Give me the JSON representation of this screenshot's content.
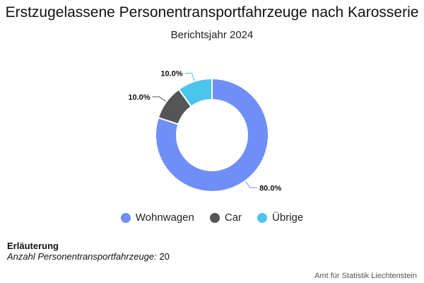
{
  "chart_data": {
    "type": "pie",
    "variant": "donut",
    "title": "Erstzugelassene Personentransportfahrzeuge nach Karosserie",
    "subtitle": "Berichtsjahr 2024",
    "slices": [
      {
        "name": "Wohnwagen",
        "value": 80.0,
        "label": "80.0%",
        "color": "#6f8ff6"
      },
      {
        "name": "Car",
        "value": 10.0,
        "label": "10.0%",
        "color": "#555555"
      },
      {
        "name": "Übrige",
        "value": 10.0,
        "label": "10.0%",
        "color": "#4bc4ee"
      }
    ],
    "legend_position": "bottom"
  },
  "note": {
    "title": "Erläuterung",
    "label": "Anzahl Personentransportfahrzeuge:",
    "value": "20"
  },
  "source": "Amt für Statistik Liechtenstein"
}
